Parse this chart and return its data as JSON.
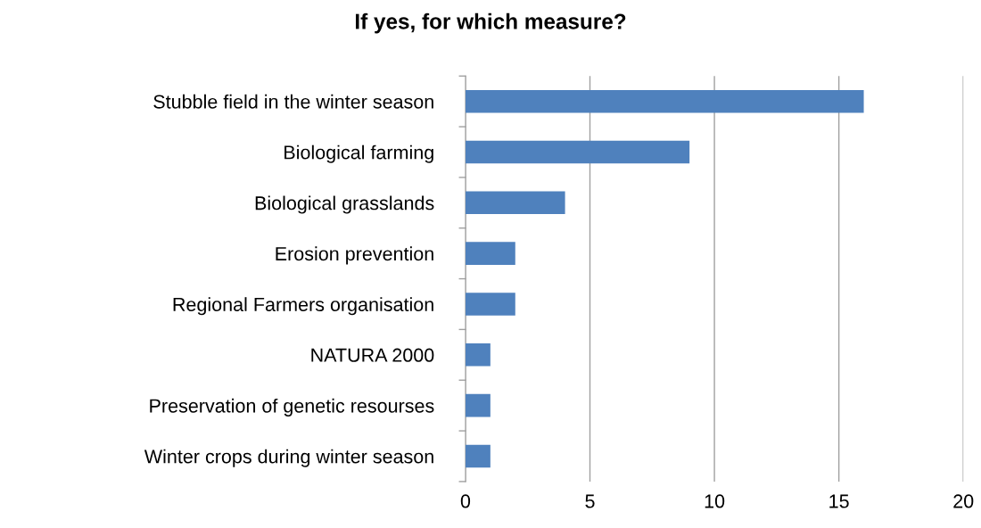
{
  "chart_data": {
    "type": "bar",
    "orientation": "horizontal",
    "title": "If yes, for which measure?",
    "categories": [
      "Stubble field in the winter season",
      "Biological farming",
      "Biological grasslands",
      "Erosion prevention",
      "Regional Farmers organisation",
      "NATURA 2000",
      "Preservation of genetic resourses",
      "Winter crops during winter season"
    ],
    "values": [
      16,
      9,
      4,
      2,
      2,
      1,
      1,
      1
    ],
    "color": "#4f81bd",
    "xlim": [
      0,
      20
    ],
    "xticks": [
      0,
      5,
      10,
      15,
      20
    ],
    "grid": "x",
    "legend": false
  }
}
